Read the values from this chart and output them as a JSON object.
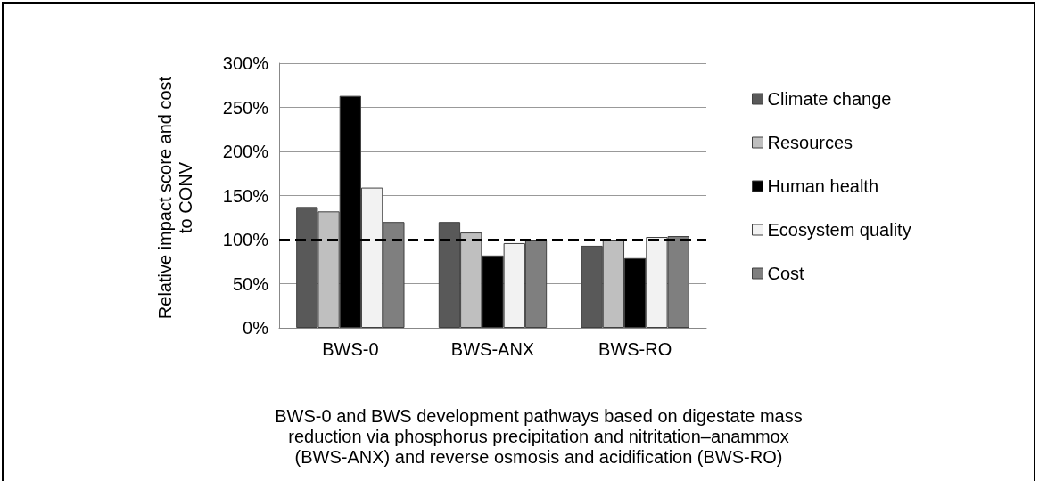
{
  "chart_data": {
    "type": "bar",
    "ylabel": "Relative impact score and cost to CONV",
    "xlabel": "BWS-0 and BWS development pathways based on digestate mass reduction via phosphorus precipitation and nitritation–anammox (BWS-ANX) and reverse osmosis and acidification (BWS-RO)",
    "categories": [
      "BWS-0",
      "BWS-ANX",
      "BWS-RO"
    ],
    "series": [
      {
        "name": "Climate change",
        "color": "#595959",
        "values": [
          137,
          120,
          93
        ]
      },
      {
        "name": "Resources",
        "color": "#bfbfbf",
        "values": [
          132,
          108,
          99
        ]
      },
      {
        "name": "Human health",
        "color": "#000000",
        "values": [
          263,
          82,
          79
        ]
      },
      {
        "name": "Ecosystem quality",
        "color": "#f2f2f2",
        "values": [
          159,
          96,
          103
        ]
      },
      {
        "name": "Cost",
        "color": "#7f7f7f",
        "values": [
          120,
          99,
          104
        ]
      }
    ],
    "ylim": [
      0,
      300
    ],
    "yticks": [
      {
        "value": 0,
        "label": "0%"
      },
      {
        "value": 50,
        "label": "50%"
      },
      {
        "value": 100,
        "label": "100%"
      },
      {
        "value": 150,
        "label": "150%"
      },
      {
        "value": 200,
        "label": "200%"
      },
      {
        "value": 250,
        "label": "250%"
      },
      {
        "value": 300,
        "label": "300%"
      }
    ],
    "ref_lines": [
      {
        "axis": "y",
        "value": 100,
        "color": "#000000",
        "line_style": "dashed"
      }
    ],
    "grid": "y",
    "legend": "right"
  }
}
